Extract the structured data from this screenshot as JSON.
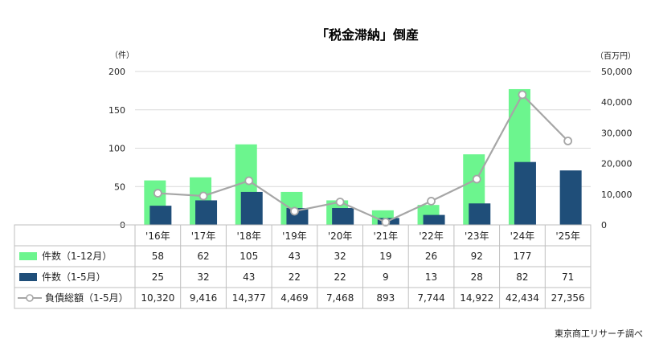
{
  "chart_data": {
    "type": "bar",
    "title": "「税金滞納」倒産",
    "y_left_unit": "（件）",
    "y_right_unit": "（百万円）",
    "ylim_left": [
      0,
      200
    ],
    "ylim_right": [
      0,
      50000
    ],
    "yticks_left": [
      "0",
      "50",
      "100",
      "150",
      "200"
    ],
    "yticks_right": [
      "0",
      "10,000",
      "20,000",
      "30,000",
      "40,000",
      "50,000"
    ],
    "grid": true,
    "categories": [
      "'16年",
      "'17年",
      "'18年",
      "'19年",
      "'20年",
      "'21年",
      "'22年",
      "'23年",
      "'24年",
      "'25年"
    ],
    "series": [
      {
        "name": "件数（1-12月）",
        "kind": "bar",
        "axis": "left",
        "color": "#6cf58e",
        "values": [
          58,
          62,
          105,
          43,
          32,
          19,
          26,
          92,
          177,
          null
        ],
        "labels": [
          "58",
          "62",
          "105",
          "43",
          "32",
          "19",
          "26",
          "92",
          "177",
          ""
        ]
      },
      {
        "name": "件数（1-5月）",
        "kind": "bar",
        "axis": "left",
        "color": "#1f4e79",
        "values": [
          25,
          32,
          43,
          22,
          22,
          9,
          13,
          28,
          82,
          71
        ],
        "labels": [
          "25",
          "32",
          "43",
          "22",
          "22",
          "9",
          "13",
          "28",
          "82",
          "71"
        ]
      },
      {
        "name": "負債総額（1-5月）",
        "kind": "line",
        "axis": "right",
        "color": "#a6a6a6",
        "values": [
          10320,
          9416,
          14377,
          4469,
          7468,
          893,
          7744,
          14922,
          42434,
          27356
        ],
        "labels": [
          "10,320",
          "9,416",
          "14,377",
          "4,469",
          "7,468",
          "893",
          "7,744",
          "14,922",
          "42,434",
          "27,356"
        ]
      }
    ],
    "source": "東京商工リサーチ調べ"
  }
}
